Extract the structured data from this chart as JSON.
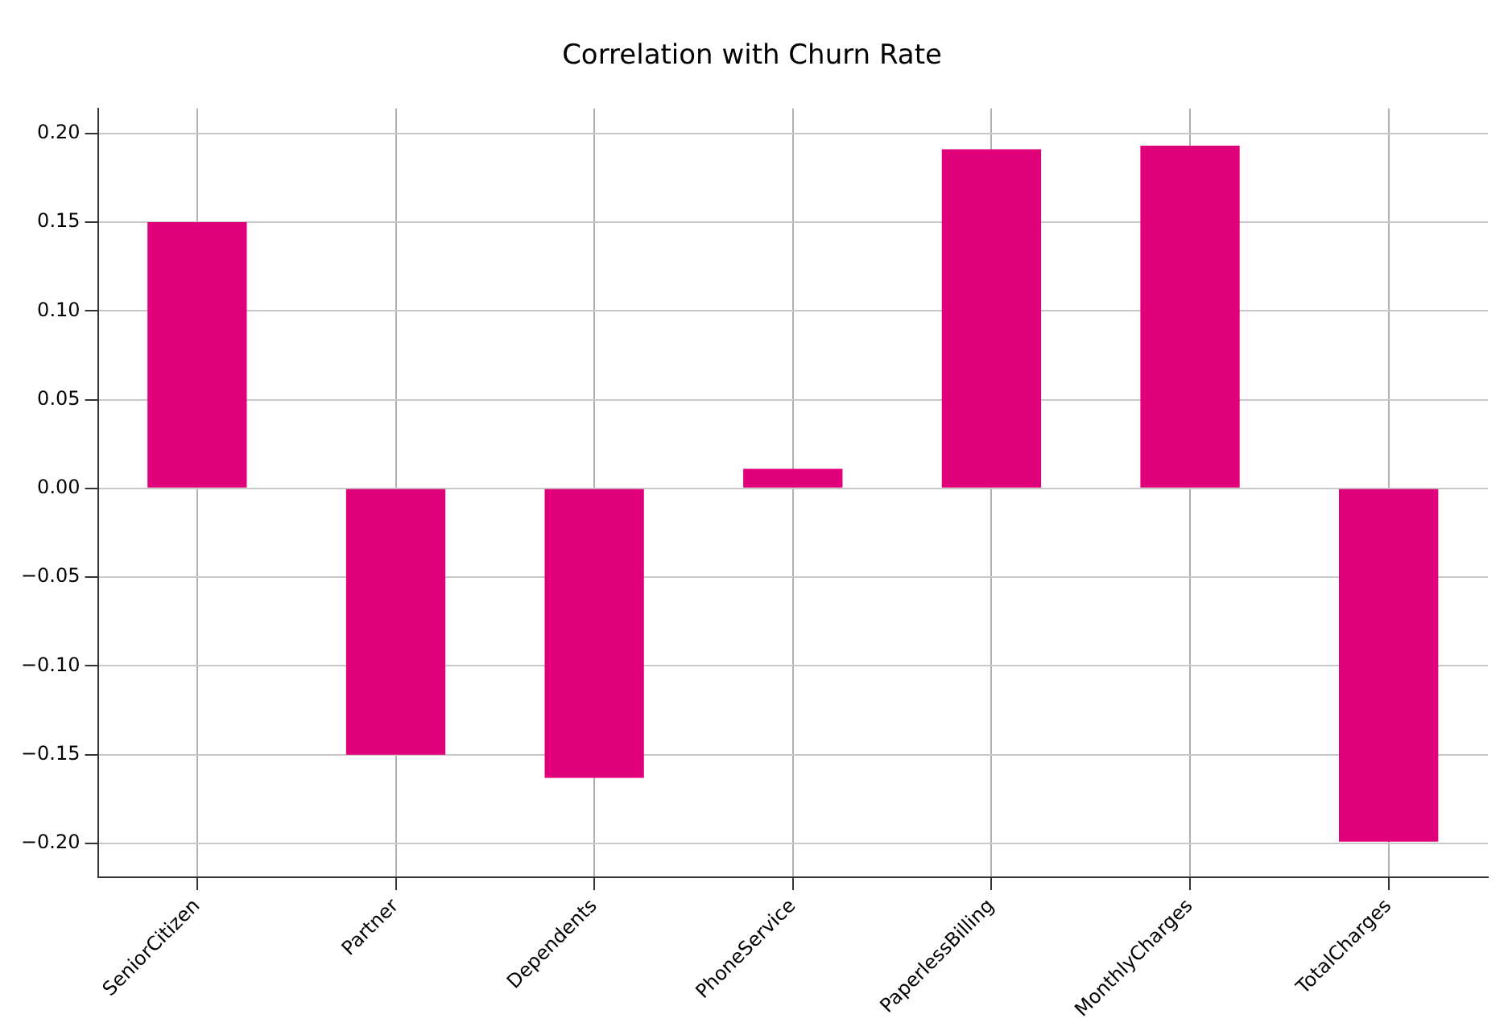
{
  "chart_data": {
    "type": "bar",
    "title": "Correlation with Churn Rate",
    "categories": [
      "SeniorCitizen",
      "Partner",
      "Dependents",
      "PhoneService",
      "PaperlessBilling",
      "MonthlyCharges",
      "TotalCharges"
    ],
    "values": [
      0.15,
      -0.15,
      -0.163,
      0.011,
      0.191,
      0.193,
      -0.199
    ],
    "color": "#e0007a",
    "ylim": [
      -0.219,
      0.214
    ],
    "yticks": [
      {
        "value": -0.2,
        "label": "−0.20"
      },
      {
        "value": -0.15,
        "label": "−0.15"
      },
      {
        "value": -0.1,
        "label": "−0.10"
      },
      {
        "value": -0.05,
        "label": "−0.05"
      },
      {
        "value": 0,
        "label": "0.00"
      },
      {
        "value": 0.05,
        "label": "0.05"
      },
      {
        "value": 0.1,
        "label": "0.10"
      },
      {
        "value": 0.15,
        "label": "0.15"
      },
      {
        "value": 0.2,
        "label": "0.20"
      }
    ],
    "grid": true,
    "legend": false
  }
}
